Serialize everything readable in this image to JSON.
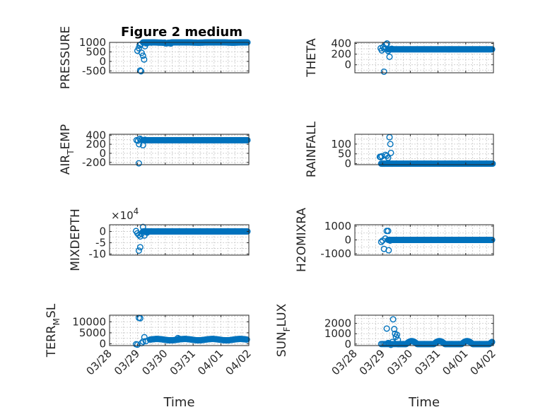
{
  "figure_title": "Figure 2 medium",
  "chart_data": [
    {
      "type": "scatter",
      "title": "Figure 2 medium",
      "ylabel": "PRESSURE",
      "xlabel": "",
      "ylim": [
        -600,
        1000
      ],
      "yticks": [
        {
          "v": 1000,
          "label": "1000"
        },
        {
          "v": 500,
          "label": "500"
        },
        {
          "v": 0,
          "label": "0"
        },
        {
          "v": -500,
          "label": "-500"
        }
      ],
      "exponent_label": "",
      "baseline": 1000,
      "points": [
        [
          29.0,
          560
        ],
        [
          29.05,
          700
        ],
        [
          29.08,
          850
        ],
        [
          29.12,
          900
        ],
        [
          29.15,
          450
        ],
        [
          29.2,
          300
        ],
        [
          29.24,
          100
        ],
        [
          29.27,
          800
        ],
        [
          29.32,
          950
        ],
        [
          29.38,
          980
        ],
        [
          29.1,
          -480
        ],
        [
          29.13,
          -520
        ],
        [
          29.5,
          990
        ],
        [
          30.05,
          960
        ],
        [
          30.1,
          980
        ],
        [
          30.2,
          940
        ]
      ]
    },
    {
      "type": "scatter",
      "title": "",
      "ylabel": "THETA",
      "xlabel": "",
      "ylim": [
        -150,
        420
      ],
      "yticks": [
        {
          "v": 400,
          "label": "400"
        },
        {
          "v": 200,
          "label": "200"
        },
        {
          "v": 0,
          "label": "0"
        }
      ],
      "exponent_label": "",
      "baseline": 290,
      "points": [
        [
          28.93,
          310
        ],
        [
          28.97,
          270
        ],
        [
          29.02,
          330
        ],
        [
          29.07,
          300
        ],
        [
          29.12,
          380
        ],
        [
          29.16,
          400
        ],
        [
          29.2,
          260
        ],
        [
          29.25,
          150
        ],
        [
          29.05,
          -130
        ],
        [
          29.33,
          300
        ]
      ]
    },
    {
      "type": "scatter",
      "title": "",
      "ylabel": "AIR_TEMP",
      "xlabel": "",
      "ylim": [
        -250,
        420
      ],
      "yticks": [
        {
          "v": 400,
          "label": "400"
        },
        {
          "v": 200,
          "label": "200"
        },
        {
          "v": 0,
          "label": "0"
        },
        {
          "v": -200,
          "label": "-200"
        }
      ],
      "exponent_label": "",
      "baseline": 290,
      "points": [
        [
          28.97,
          290
        ],
        [
          29.02,
          280
        ],
        [
          29.06,
          200
        ],
        [
          29.09,
          320
        ],
        [
          29.14,
          300
        ],
        [
          29.2,
          180
        ],
        [
          29.27,
          300
        ],
        [
          29.05,
          -220
        ]
      ]
    },
    {
      "type": "scatter",
      "title": "",
      "ylabel": "RAINFALL",
      "xlabel": "",
      "ylim": [
        -5,
        150
      ],
      "yticks": [
        {
          "v": 100,
          "label": "100"
        },
        {
          "v": 50,
          "label": "50"
        },
        {
          "v": 0,
          "label": "0"
        }
      ],
      "exponent_label": "",
      "baseline": 0,
      "points": [
        [
          28.9,
          35
        ],
        [
          28.93,
          33
        ],
        [
          28.97,
          38
        ],
        [
          29.0,
          0
        ],
        [
          29.05,
          0
        ],
        [
          29.1,
          45
        ],
        [
          29.15,
          40
        ],
        [
          29.2,
          30
        ],
        [
          29.25,
          135
        ],
        [
          29.28,
          100
        ],
        [
          29.3,
          55
        ],
        [
          29.35,
          0
        ]
      ]
    },
    {
      "type": "scatter",
      "title": "",
      "ylabel": "MIXDEPTH",
      "xlabel": "",
      "ylim": [
        -10.5,
        3
      ],
      "yticks": [
        {
          "v": 0,
          "label": "0"
        },
        {
          "v": -5,
          "label": "-5"
        },
        {
          "v": -10,
          "label": "-10"
        }
      ],
      "exponent_label": "×10^4",
      "baseline": 0,
      "points": [
        [
          28.95,
          0.2
        ],
        [
          29.0,
          -0.8
        ],
        [
          29.05,
          -1.5
        ],
        [
          29.1,
          -2.2
        ],
        [
          29.15,
          -1.0
        ],
        [
          29.2,
          2.0
        ],
        [
          29.25,
          -1.8
        ],
        [
          29.35,
          -0.5
        ],
        [
          29.05,
          -8.5
        ],
        [
          29.1,
          -7.0
        ],
        [
          29.45,
          0.0
        ]
      ]
    },
    {
      "type": "scatter",
      "title": "",
      "ylabel": "H2OMIXRA",
      "xlabel": "",
      "ylim": [
        -1100,
        1100
      ],
      "yticks": [
        {
          "v": 1000,
          "label": "1000"
        },
        {
          "v": 0,
          "label": "0"
        },
        {
          "v": -1000,
          "label": "-1000"
        }
      ],
      "exponent_label": "",
      "baseline": 0,
      "points": [
        [
          28.95,
          -150
        ],
        [
          29.0,
          -50
        ],
        [
          29.05,
          -650
        ],
        [
          29.1,
          100
        ],
        [
          29.15,
          650
        ],
        [
          29.2,
          650
        ],
        [
          29.22,
          -750
        ],
        [
          29.27,
          -50
        ],
        [
          29.4,
          0
        ]
      ]
    },
    {
      "type": "scatter",
      "title": "",
      "ylabel": "TERR_MSL",
      "xlabel": "Time",
      "ylim": [
        -800,
        13000
      ],
      "yticks": [
        {
          "v": 10000,
          "label": "10000"
        },
        {
          "v": 5000,
          "label": "5000"
        },
        {
          "v": 0,
          "label": "0"
        }
      ],
      "exponent_label": "",
      "baseline": 1900,
      "points": [
        [
          28.95,
          -200
        ],
        [
          29.0,
          -400
        ],
        [
          29.05,
          11800
        ],
        [
          29.1,
          11600
        ],
        [
          29.15,
          300
        ],
        [
          29.2,
          1000
        ],
        [
          29.25,
          3000
        ],
        [
          29.3,
          1200
        ],
        [
          30.45,
          2600
        ],
        [
          30.5,
          2300
        ]
      ]
    },
    {
      "type": "scatter",
      "title": "",
      "ylabel": "SUN_FLUX",
      "xlabel": "Time",
      "ylim": [
        -150,
        2800
      ],
      "yticks": [
        {
          "v": 2000,
          "label": "2000"
        },
        {
          "v": 1000,
          "label": "1000"
        },
        {
          "v": 0,
          "label": "0"
        }
      ],
      "exponent_label": "",
      "baseline": 0,
      "points": [
        [
          29.15,
          1500
        ],
        [
          29.2,
          100
        ],
        [
          29.25,
          50
        ],
        [
          29.3,
          -80
        ],
        [
          29.35,
          200
        ],
        [
          29.38,
          2400
        ],
        [
          29.42,
          1450
        ],
        [
          29.45,
          1000
        ],
        [
          29.48,
          700
        ],
        [
          29.52,
          900
        ],
        [
          29.55,
          400
        ]
      ]
    }
  ],
  "x_axis": {
    "xlim": [
      28,
      33
    ],
    "ticks": [
      {
        "v": 28,
        "label": "03/28"
      },
      {
        "v": 29,
        "label": "03/29"
      },
      {
        "v": 30,
        "label": "03/30"
      },
      {
        "v": 31,
        "label": "03/31"
      },
      {
        "v": 32,
        "label": "04/01"
      },
      {
        "v": 33,
        "label": "04/02"
      }
    ],
    "label": "Time"
  }
}
